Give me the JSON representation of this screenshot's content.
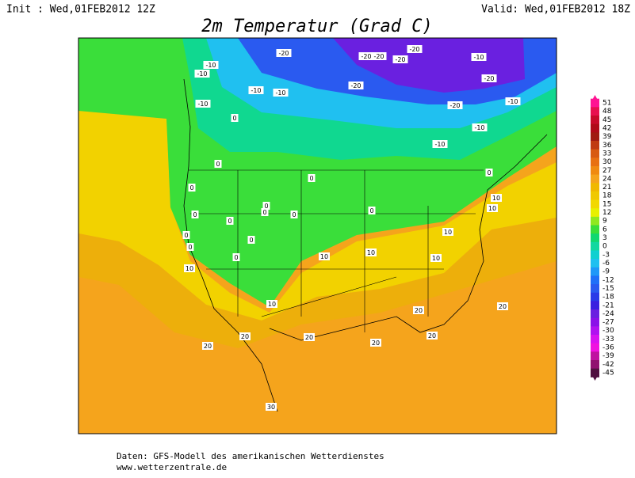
{
  "header": {
    "init": "Init : Wed,01FEB2012 12Z",
    "valid": "Valid: Wed,01FEB2012 18Z",
    "title": "2m Temperatur (Grad C)"
  },
  "footer": {
    "source": "Daten: GFS-Modell des amerikanischen Wetterdienstes",
    "url": "www.wetterzentrale.de"
  },
  "contour_labels": [
    -20,
    -10,
    -10,
    -20,
    -20,
    -20,
    -20,
    -10,
    -20,
    -10,
    -10,
    -20,
    -10,
    -20,
    -10,
    -10,
    -10,
    0,
    0,
    0,
    0,
    0,
    0,
    0,
    0,
    0,
    0,
    0,
    10,
    10,
    0,
    0,
    0,
    0,
    10,
    10,
    10,
    10,
    10,
    10,
    20,
    20,
    20,
    20,
    20,
    20,
    20,
    30
  ],
  "scale": [
    {
      "value": 51,
      "color": "#ff1493"
    },
    {
      "value": 48,
      "color": "#e8104f"
    },
    {
      "value": 45,
      "color": "#c80a2a"
    },
    {
      "value": 42,
      "color": "#b00a18"
    },
    {
      "value": 39,
      "color": "#a01a10"
    },
    {
      "value": 36,
      "color": "#c03a10"
    },
    {
      "value": 33,
      "color": "#d85a10"
    },
    {
      "value": 30,
      "color": "#e87010"
    },
    {
      "value": 27,
      "color": "#f08a10"
    },
    {
      "value": 24,
      "color": "#f5a41c"
    },
    {
      "value": 21,
      "color": "#f0b800"
    },
    {
      "value": 18,
      "color": "#f0c800"
    },
    {
      "value": 15,
      "color": "#f2d800"
    },
    {
      "value": 12,
      "color": "#e8f000"
    },
    {
      "value": 9,
      "color": "#90e820"
    },
    {
      "value": 6,
      "color": "#3ade3a"
    },
    {
      "value": 3,
      "color": "#10d870"
    },
    {
      "value": 0,
      "color": "#10d8a0"
    },
    {
      "value": -3,
      "color": "#10d0d0"
    },
    {
      "value": -6,
      "color": "#20c0f0"
    },
    {
      "value": -9,
      "color": "#2098f8"
    },
    {
      "value": -12,
      "color": "#2070f8"
    },
    {
      "value": -15,
      "color": "#2a5af0"
    },
    {
      "value": -18,
      "color": "#2a3ae8"
    },
    {
      "value": -21,
      "color": "#3a20e0"
    },
    {
      "value": -24,
      "color": "#6a20e0"
    },
    {
      "value": -27,
      "color": "#8a10e8"
    },
    {
      "value": -30,
      "color": "#b010f0"
    },
    {
      "value": -33,
      "color": "#d810f0"
    },
    {
      "value": -36,
      "color": "#f010e0"
    },
    {
      "value": -39,
      "color": "#c010a0"
    },
    {
      "value": -42,
      "color": "#901070"
    },
    {
      "value": -45,
      "color": "#501040"
    }
  ]
}
